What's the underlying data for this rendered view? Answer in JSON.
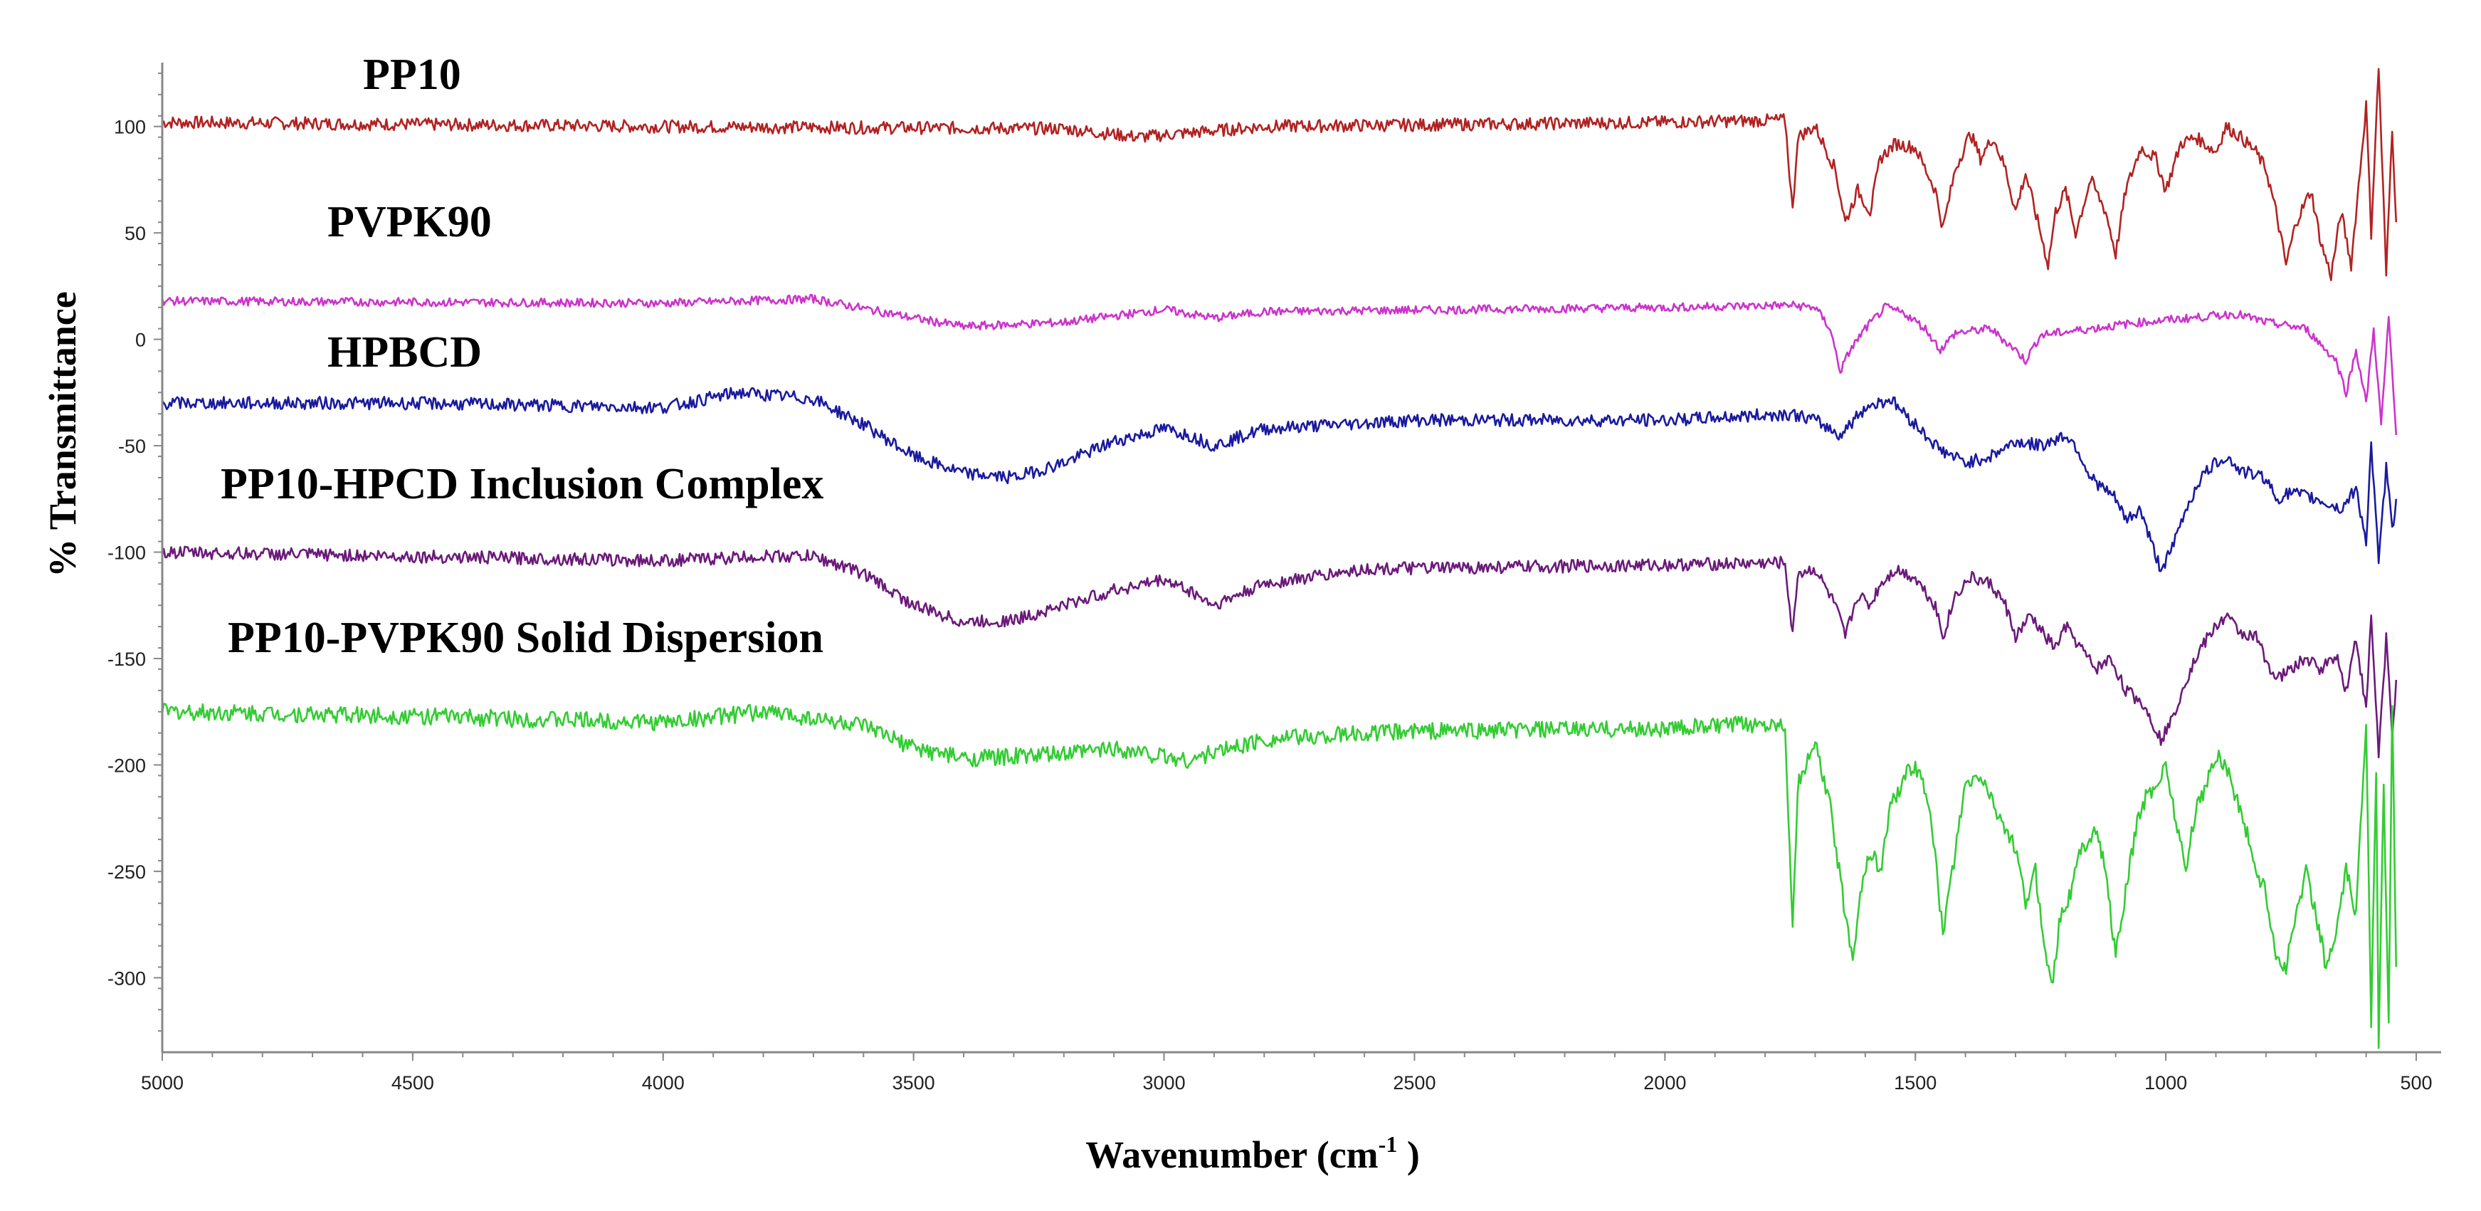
{
  "chart_data": {
    "type": "line",
    "title": "",
    "xlabel": "Wavenumber (cm",
    "xlabel_sup": "-1",
    "xlabel_suffix": " )",
    "ylabel": "% Transmittance",
    "xlim": [
      5000,
      500
    ],
    "ylim": [
      -335,
      130
    ],
    "x_ticks": [
      "5000",
      "4500",
      "4000",
      "3500",
      "3000",
      "2500",
      "2000",
      "1500",
      "1000",
      "500"
    ],
    "y_ticks": [
      "100",
      "50",
      "0",
      "-50",
      "-100",
      "-150",
      "-200",
      "-250",
      "-300"
    ],
    "grid": false,
    "series": [
      {
        "name": "PP10",
        "color": "#b22222",
        "noise": 3,
        "points": [
          [
            5000,
            102
          ],
          [
            4000,
            100
          ],
          [
            3200,
            99
          ],
          [
            3050,
            95
          ],
          [
            2950,
            97
          ],
          [
            2800,
            100
          ],
          [
            2000,
            102
          ],
          [
            1760,
            103
          ],
          [
            1745,
            60
          ],
          [
            1735,
            95
          ],
          [
            1700,
            100
          ],
          [
            1660,
            80
          ],
          [
            1640,
            55
          ],
          [
            1615,
            70
          ],
          [
            1590,
            60
          ],
          [
            1570,
            85
          ],
          [
            1540,
            92
          ],
          [
            1500,
            90
          ],
          [
            1460,
            70
          ],
          [
            1445,
            52
          ],
          [
            1420,
            80
          ],
          [
            1390,
            97
          ],
          [
            1370,
            85
          ],
          [
            1345,
            95
          ],
          [
            1320,
            80
          ],
          [
            1300,
            60
          ],
          [
            1280,
            78
          ],
          [
            1250,
            50
          ],
          [
            1235,
            35
          ],
          [
            1220,
            60
          ],
          [
            1200,
            70
          ],
          [
            1180,
            50
          ],
          [
            1150,
            75
          ],
          [
            1120,
            60
          ],
          [
            1100,
            40
          ],
          [
            1080,
            70
          ],
          [
            1050,
            90
          ],
          [
            1020,
            85
          ],
          [
            1000,
            70
          ],
          [
            970,
            92
          ],
          [
            940,
            95
          ],
          [
            900,
            88
          ],
          [
            880,
            100
          ],
          [
            850,
            95
          ],
          [
            820,
            88
          ],
          [
            800,
            80
          ],
          [
            780,
            60
          ],
          [
            760,
            35
          ],
          [
            740,
            55
          ],
          [
            710,
            70
          ],
          [
            690,
            45
          ],
          [
            670,
            30
          ],
          [
            650,
            60
          ],
          [
            630,
            35
          ],
          [
            600,
            110
          ],
          [
            590,
            50
          ],
          [
            575,
            128
          ],
          [
            560,
            30
          ],
          [
            548,
            100
          ],
          [
            540,
            55
          ]
        ]
      },
      {
        "name": "PVPK90",
        "color": "#cc33cc",
        "noise": 2,
        "points": [
          [
            5000,
            18
          ],
          [
            4000,
            17
          ],
          [
            3700,
            19
          ],
          [
            3500,
            10
          ],
          [
            3400,
            6
          ],
          [
            3200,
            8
          ],
          [
            3000,
            14
          ],
          [
            2900,
            10
          ],
          [
            2800,
            13
          ],
          [
            2000,
            15
          ],
          [
            1750,
            16
          ],
          [
            1700,
            15
          ],
          [
            1670,
            5
          ],
          [
            1650,
            -15
          ],
          [
            1630,
            -5
          ],
          [
            1600,
            5
          ],
          [
            1560,
            15
          ],
          [
            1520,
            12
          ],
          [
            1480,
            5
          ],
          [
            1450,
            -5
          ],
          [
            1420,
            3
          ],
          [
            1350,
            5
          ],
          [
            1300,
            -5
          ],
          [
            1280,
            -10
          ],
          [
            1250,
            2
          ],
          [
            1150,
            5
          ],
          [
            1050,
            8
          ],
          [
            950,
            10
          ],
          [
            860,
            12
          ],
          [
            800,
            8
          ],
          [
            720,
            5
          ],
          [
            660,
            -10
          ],
          [
            640,
            -25
          ],
          [
            620,
            -5
          ],
          [
            600,
            -30
          ],
          [
            585,
            5
          ],
          [
            570,
            -40
          ],
          [
            555,
            10
          ],
          [
            540,
            -45
          ]
        ]
      },
      {
        "name": "HPBCD",
        "color": "#1a1aa0",
        "noise": 3,
        "points": [
          [
            5000,
            -30
          ],
          [
            4500,
            -30
          ],
          [
            4000,
            -32
          ],
          [
            3850,
            -25
          ],
          [
            3700,
            -28
          ],
          [
            3600,
            -40
          ],
          [
            3500,
            -55
          ],
          [
            3400,
            -63
          ],
          [
            3300,
            -65
          ],
          [
            3200,
            -58
          ],
          [
            3100,
            -48
          ],
          [
            3000,
            -42
          ],
          [
            2950,
            -45
          ],
          [
            2900,
            -50
          ],
          [
            2800,
            -42
          ],
          [
            2500,
            -38
          ],
          [
            2000,
            -38
          ],
          [
            1750,
            -35
          ],
          [
            1700,
            -38
          ],
          [
            1650,
            -45
          ],
          [
            1600,
            -32
          ],
          [
            1550,
            -28
          ],
          [
            1500,
            -40
          ],
          [
            1450,
            -52
          ],
          [
            1400,
            -58
          ],
          [
            1350,
            -55
          ],
          [
            1300,
            -48
          ],
          [
            1250,
            -50
          ],
          [
            1200,
            -45
          ],
          [
            1180,
            -50
          ],
          [
            1150,
            -65
          ],
          [
            1100,
            -75
          ],
          [
            1080,
            -85
          ],
          [
            1050,
            -80
          ],
          [
            1030,
            -95
          ],
          [
            1010,
            -108
          ],
          [
            990,
            -100
          ],
          [
            960,
            -80
          ],
          [
            930,
            -65
          ],
          [
            900,
            -58
          ],
          [
            880,
            -55
          ],
          [
            850,
            -62
          ],
          [
            800,
            -65
          ],
          [
            780,
            -75
          ],
          [
            750,
            -72
          ],
          [
            700,
            -75
          ],
          [
            650,
            -80
          ],
          [
            620,
            -70
          ],
          [
            600,
            -95
          ],
          [
            590,
            -50
          ],
          [
            575,
            -105
          ],
          [
            560,
            -60
          ],
          [
            548,
            -90
          ],
          [
            540,
            -75
          ]
        ]
      },
      {
        "name": "PP10-HPCD Inclusion Complex",
        "color": "#6b1a7a",
        "noise": 3,
        "points": [
          [
            5000,
            -100
          ],
          [
            4500,
            -102
          ],
          [
            4000,
            -104
          ],
          [
            3800,
            -102
          ],
          [
            3700,
            -102
          ],
          [
            3600,
            -110
          ],
          [
            3500,
            -125
          ],
          [
            3400,
            -133
          ],
          [
            3300,
            -132
          ],
          [
            3200,
            -125
          ],
          [
            3100,
            -118
          ],
          [
            3000,
            -113
          ],
          [
            2950,
            -118
          ],
          [
            2900,
            -125
          ],
          [
            2800,
            -115
          ],
          [
            2600,
            -108
          ],
          [
            2000,
            -106
          ],
          [
            1760,
            -105
          ],
          [
            1745,
            -140
          ],
          [
            1735,
            -110
          ],
          [
            1700,
            -108
          ],
          [
            1660,
            -125
          ],
          [
            1640,
            -140
          ],
          [
            1615,
            -120
          ],
          [
            1590,
            -125
          ],
          [
            1570,
            -115
          ],
          [
            1540,
            -108
          ],
          [
            1500,
            -112
          ],
          [
            1460,
            -125
          ],
          [
            1445,
            -140
          ],
          [
            1420,
            -120
          ],
          [
            1390,
            -112
          ],
          [
            1350,
            -115
          ],
          [
            1320,
            -125
          ],
          [
            1300,
            -140
          ],
          [
            1270,
            -130
          ],
          [
            1240,
            -140
          ],
          [
            1220,
            -145
          ],
          [
            1200,
            -135
          ],
          [
            1170,
            -145
          ],
          [
            1140,
            -155
          ],
          [
            1110,
            -150
          ],
          [
            1080,
            -165
          ],
          [
            1050,
            -170
          ],
          [
            1030,
            -178
          ],
          [
            1010,
            -188
          ],
          [
            990,
            -180
          ],
          [
            960,
            -160
          ],
          [
            930,
            -145
          ],
          [
            900,
            -135
          ],
          [
            880,
            -130
          ],
          [
            850,
            -138
          ],
          [
            820,
            -140
          ],
          [
            800,
            -150
          ],
          [
            780,
            -160
          ],
          [
            750,
            -155
          ],
          [
            720,
            -150
          ],
          [
            690,
            -155
          ],
          [
            660,
            -148
          ],
          [
            640,
            -165
          ],
          [
            620,
            -140
          ],
          [
            600,
            -175
          ],
          [
            590,
            -130
          ],
          [
            575,
            -195
          ],
          [
            560,
            -140
          ],
          [
            548,
            -185
          ],
          [
            540,
            -160
          ]
        ]
      },
      {
        "name": "PP10-PVPK90 Solid Dispersion",
        "color": "#33cc33",
        "noise": 4,
        "points": [
          [
            5000,
            -175
          ],
          [
            4500,
            -177
          ],
          [
            4000,
            -180
          ],
          [
            3800,
            -175
          ],
          [
            3700,
            -178
          ],
          [
            3600,
            -182
          ],
          [
            3500,
            -192
          ],
          [
            3400,
            -197
          ],
          [
            3200,
            -195
          ],
          [
            3100,
            -192
          ],
          [
            3000,
            -196
          ],
          [
            2950,
            -198
          ],
          [
            2900,
            -194
          ],
          [
            2800,
            -188
          ],
          [
            2500,
            -184
          ],
          [
            2000,
            -183
          ],
          [
            1760,
            -180
          ],
          [
            1745,
            -280
          ],
          [
            1735,
            -210
          ],
          [
            1700,
            -190
          ],
          [
            1670,
            -220
          ],
          [
            1640,
            -270
          ],
          [
            1625,
            -290
          ],
          [
            1610,
            -260
          ],
          [
            1590,
            -240
          ],
          [
            1570,
            -250
          ],
          [
            1550,
            -220
          ],
          [
            1520,
            -205
          ],
          [
            1500,
            -200
          ],
          [
            1470,
            -220
          ],
          [
            1445,
            -280
          ],
          [
            1420,
            -240
          ],
          [
            1400,
            -210
          ],
          [
            1370,
            -205
          ],
          [
            1340,
            -220
          ],
          [
            1300,
            -240
          ],
          [
            1280,
            -265
          ],
          [
            1260,
            -250
          ],
          [
            1240,
            -290
          ],
          [
            1225,
            -300
          ],
          [
            1210,
            -270
          ],
          [
            1190,
            -260
          ],
          [
            1170,
            -240
          ],
          [
            1140,
            -230
          ],
          [
            1120,
            -250
          ],
          [
            1100,
            -290
          ],
          [
            1080,
            -260
          ],
          [
            1060,
            -230
          ],
          [
            1040,
            -215
          ],
          [
            1020,
            -210
          ],
          [
            1000,
            -200
          ],
          [
            980,
            -225
          ],
          [
            960,
            -250
          ],
          [
            940,
            -220
          ],
          [
            920,
            -210
          ],
          [
            900,
            -195
          ],
          [
            880,
            -200
          ],
          [
            860,
            -215
          ],
          [
            840,
            -230
          ],
          [
            820,
            -250
          ],
          [
            800,
            -260
          ],
          [
            780,
            -290
          ],
          [
            760,
            -295
          ],
          [
            740,
            -270
          ],
          [
            720,
            -250
          ],
          [
            700,
            -270
          ],
          [
            680,
            -295
          ],
          [
            660,
            -280
          ],
          [
            640,
            -250
          ],
          [
            620,
            -270
          ],
          [
            600,
            -180
          ],
          [
            590,
            -320
          ],
          [
            580,
            -200
          ],
          [
            575,
            -330
          ],
          [
            565,
            -210
          ],
          [
            555,
            -320
          ],
          [
            548,
            -170
          ],
          [
            540,
            -295
          ]
        ]
      }
    ]
  }
}
